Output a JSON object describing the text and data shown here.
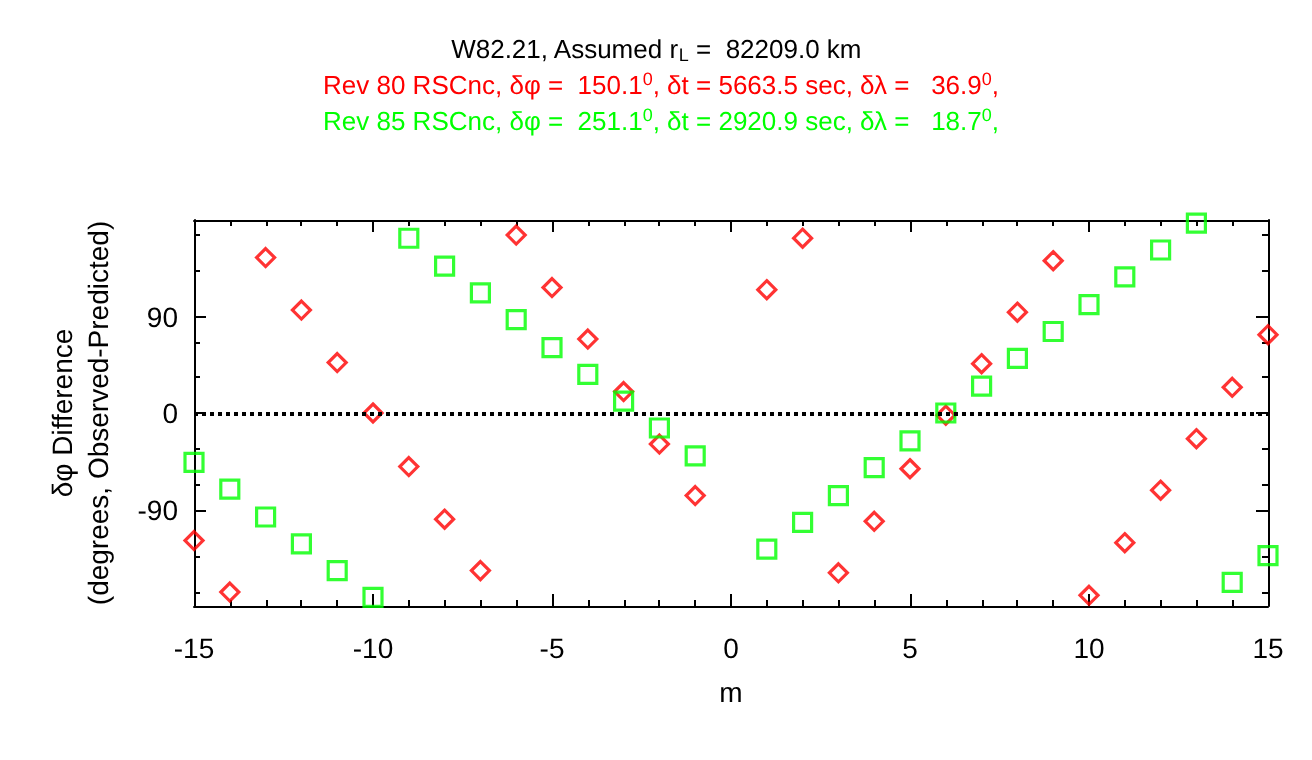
{
  "chart_data": {
    "type": "scatter",
    "title": "W82.21, Assumed r$_{L}$ =  82209.0 km",
    "xlabel": "m",
    "ylabel": "δφ Difference\n(degrees, Observed-Predicted)",
    "x": [
      -15,
      -14,
      -13,
      -12,
      -11,
      -10,
      -9,
      -8,
      -7,
      -6,
      -5,
      -4,
      -3,
      -2,
      -1,
      1,
      2,
      3,
      4,
      5,
      6,
      7,
      8,
      9,
      10,
      11,
      12,
      13,
      14,
      15
    ],
    "series": [
      {
        "name": "Rev 80 RSCnc, δφ =  150.1$^{0}$, δt = 5663.5 sec, δλ =   36.9$^{0}$,",
        "color": "#ff0000",
        "marker": "diamond",
        "values": [
          -119,
          -167,
          145,
          96,
          47,
          0,
          -50,
          -99,
          -147,
          166,
          117,
          69,
          20,
          -29,
          -77,
          115,
          163,
          -149,
          -101,
          -52,
          -2,
          46,
          94,
          142,
          -170,
          -121,
          -72,
          -24,
          24,
          73
        ]
      },
      {
        "name": "Rev 85 RSCnc, δφ =  251.1$^{0}$, δt = 2920.9 sec, δλ =   18.7$^{0}$,",
        "color": "#00ff00",
        "marker": "square",
        "values": [
          -46,
          -71,
          -97,
          -122,
          -147,
          -172,
          163,
          137,
          112,
          87,
          61,
          36,
          11,
          -14,
          -40,
          -127,
          -102,
          -77,
          -51,
          -26,
          0,
          25,
          51,
          76,
          101,
          127,
          152,
          177,
          -158,
          -133
        ]
      }
    ],
    "xlim": [
      -15,
      15
    ],
    "xticks": [
      -15,
      -10,
      -5,
      0,
      5,
      10,
      15
    ],
    "ylim": [
      -180,
      180
    ],
    "yticks": [
      -90,
      0,
      90
    ],
    "ref_lines": [
      {
        "axis": "y",
        "value": 0,
        "color": "#000000",
        "line_style": "dotted"
      }
    ],
    "legend": "top",
    "grid": false
  }
}
